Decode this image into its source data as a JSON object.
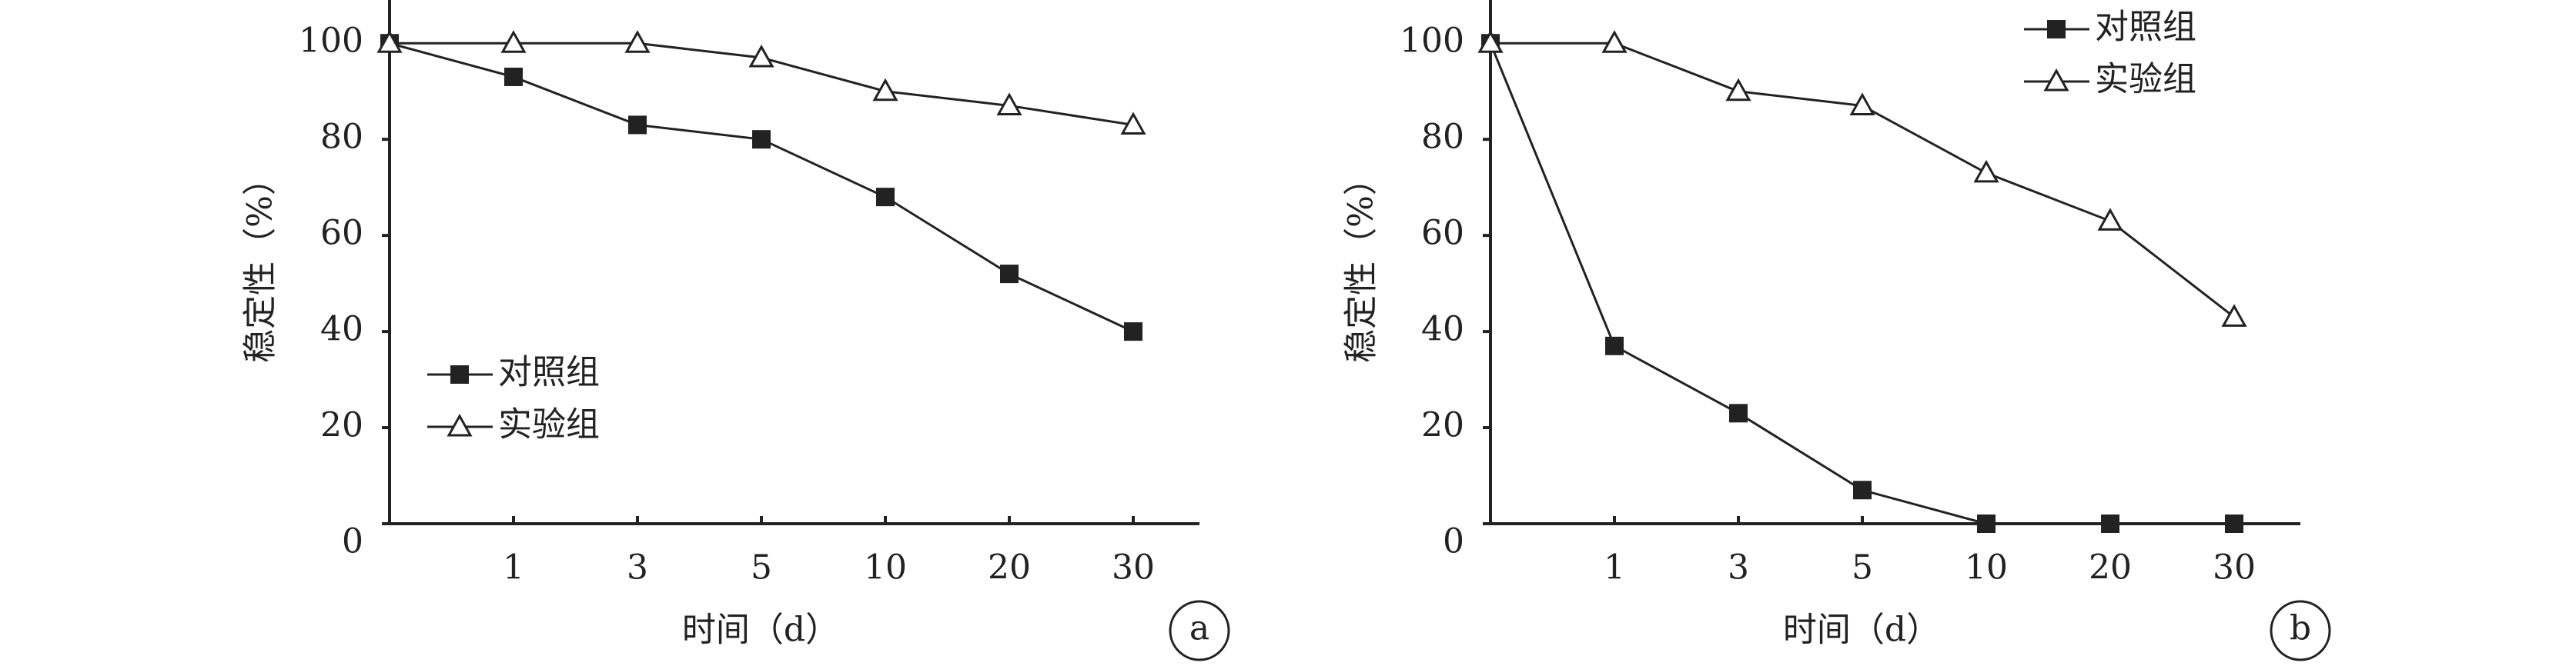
{
  "chart_data": [
    {
      "type": "line",
      "label": "a",
      "xlabel": "时间（d）",
      "ylabel": "稳定性（%）",
      "categories": [
        null,
        "1",
        "3",
        "5",
        "10",
        "20",
        "30"
      ],
      "ylim": [
        0,
        109
      ],
      "yticks": [
        0,
        20,
        40,
        60,
        80,
        100
      ],
      "legend": "lower left",
      "series": [
        {
          "name": "对照组",
          "color": "#222222",
          "marker": "square",
          "values": [
            100,
            93,
            83,
            80,
            68,
            52,
            40
          ]
        },
        {
          "name": "实验组",
          "color": "#222222",
          "marker": "triangle",
          "values": [
            100,
            100,
            100,
            97,
            90,
            87,
            83
          ]
        }
      ]
    },
    {
      "type": "line",
      "label": "b",
      "xlabel": "时间（d）",
      "ylabel": "稳定性（%）",
      "categories": [
        null,
        "1",
        "3",
        "5",
        "10",
        "20",
        "30"
      ],
      "ylim": [
        0,
        109
      ],
      "yticks": [
        0,
        20,
        40,
        60,
        80,
        100
      ],
      "legend": "upper right",
      "series": [
        {
          "name": "对照组",
          "color": "#222222",
          "marker": "square",
          "values": [
            100,
            37,
            23,
            7,
            0,
            0,
            0
          ]
        },
        {
          "name": "实验组",
          "color": "#222222",
          "marker": "triangle",
          "values": [
            100,
            100,
            90,
            87,
            73,
            63,
            43
          ]
        }
      ]
    }
  ]
}
